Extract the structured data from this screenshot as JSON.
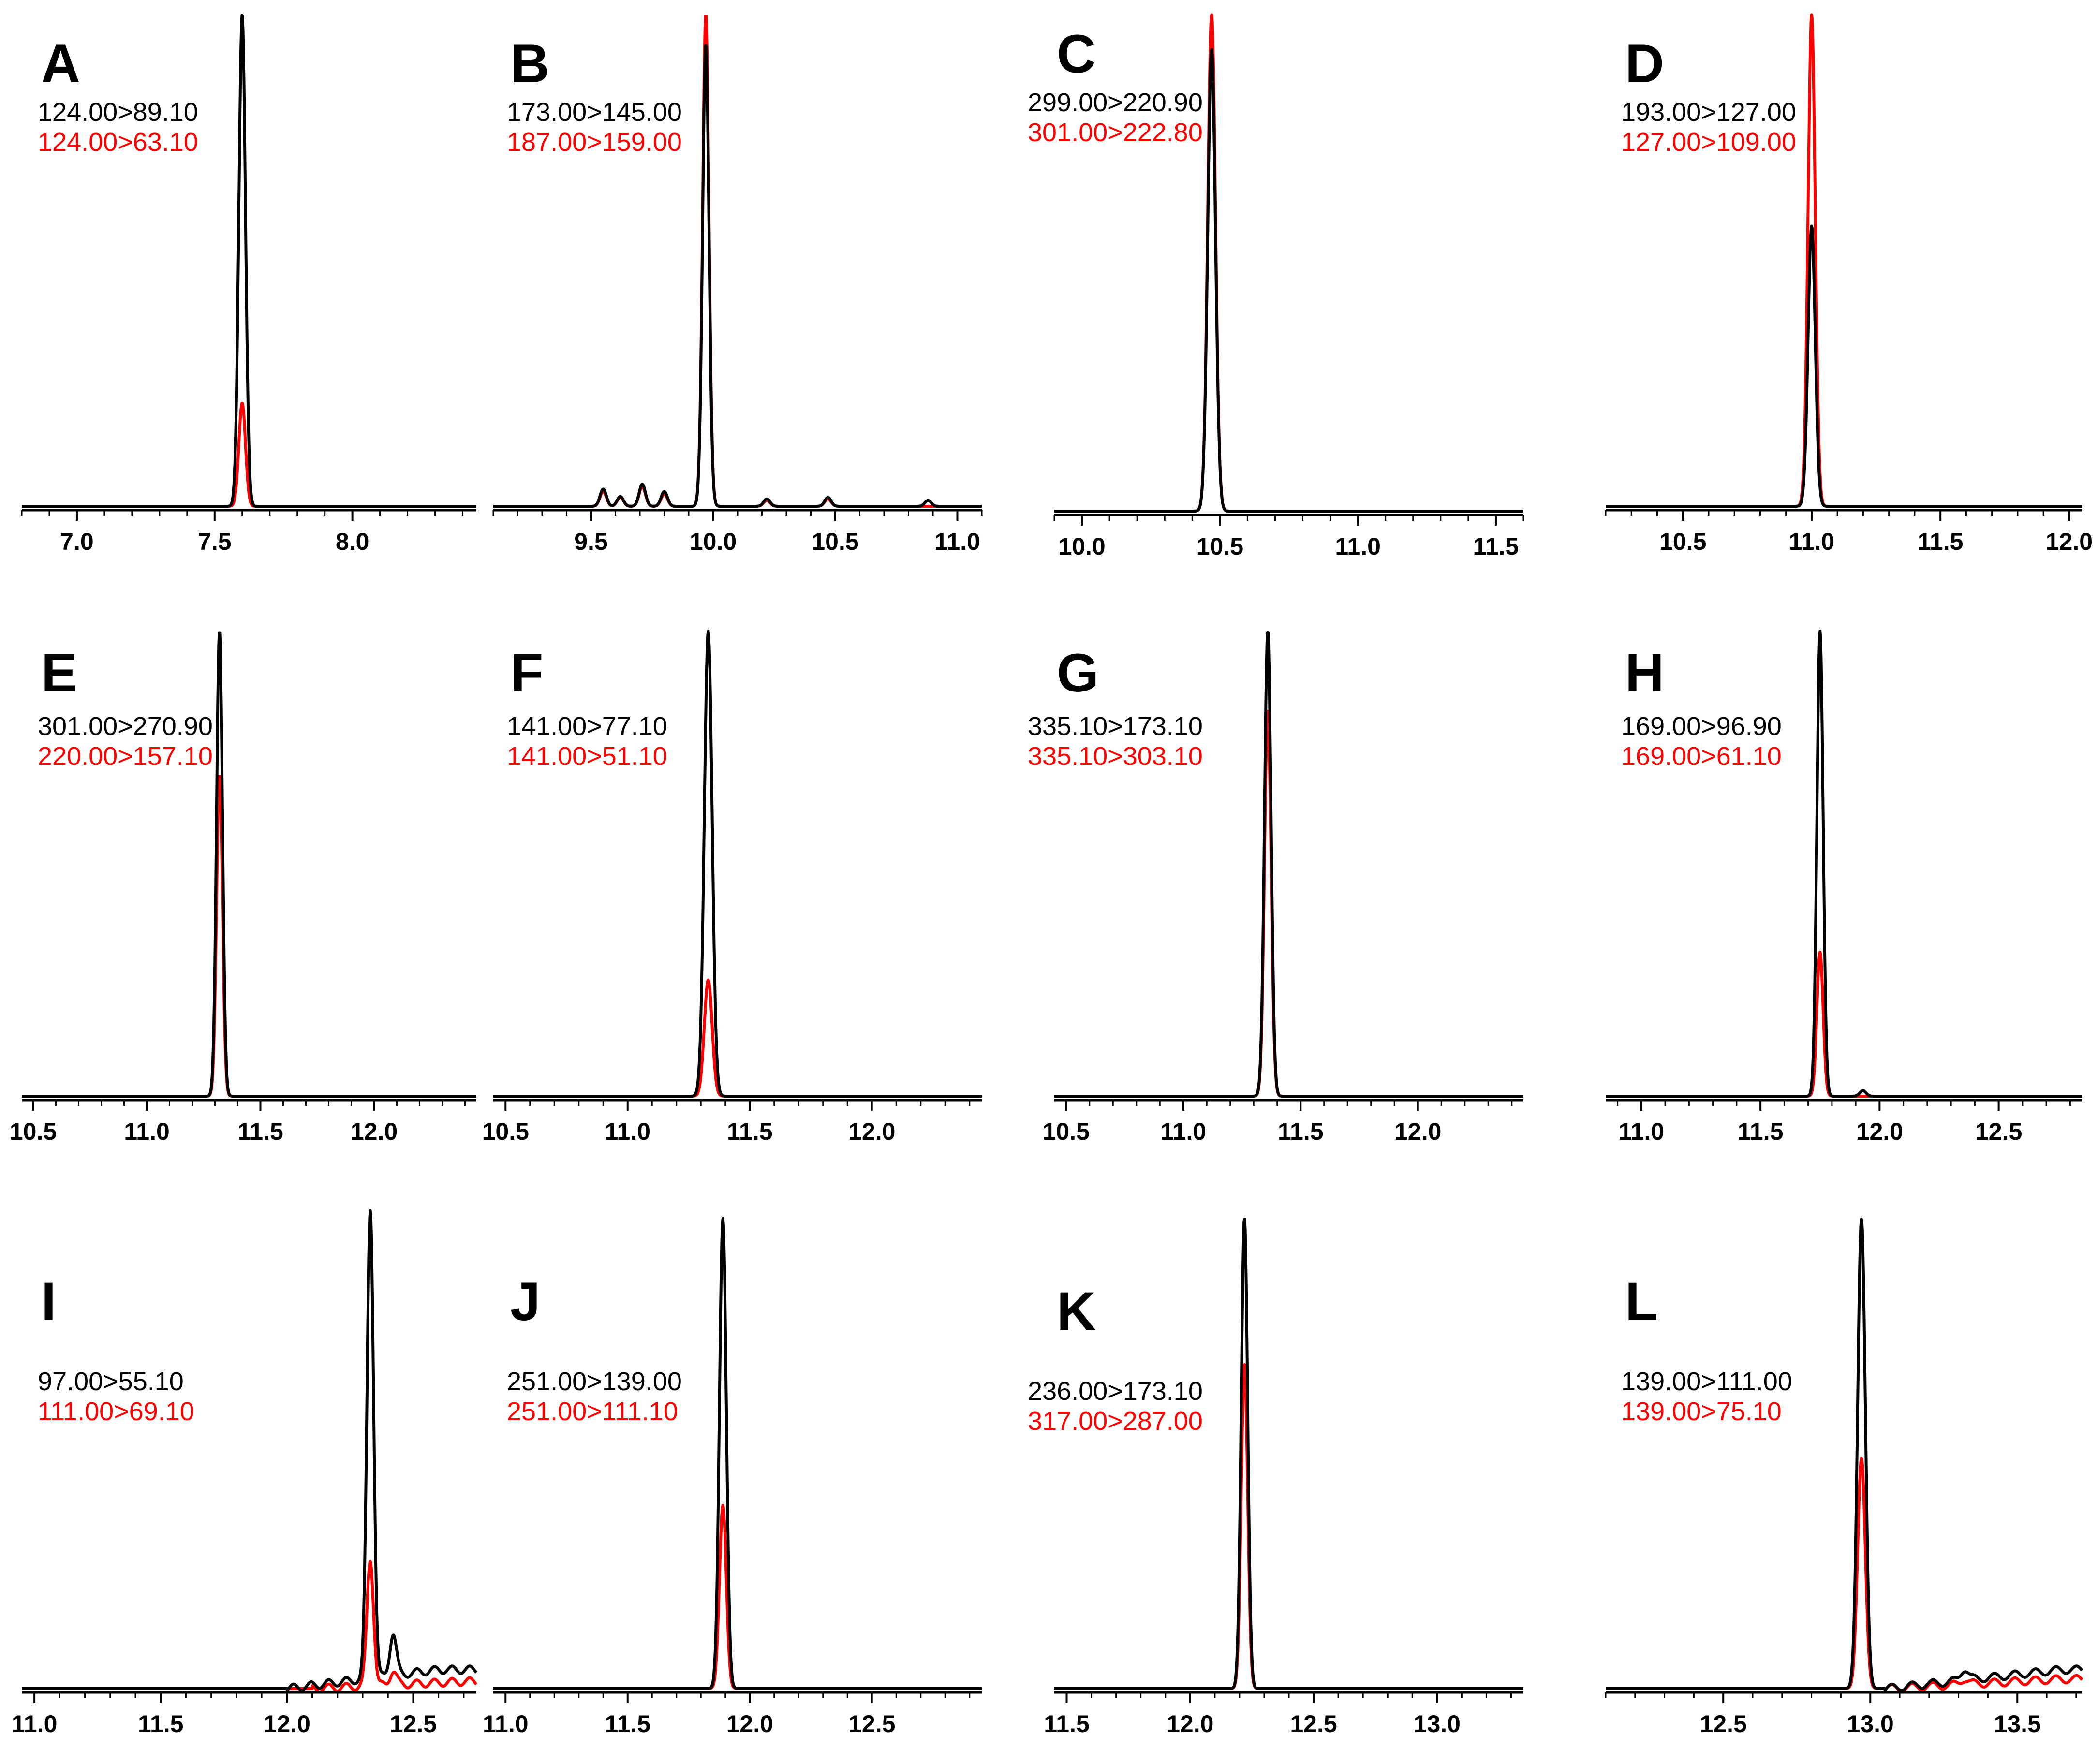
{
  "colors": {
    "trace_1": "#000000",
    "trace_2": "#ff0000"
  },
  "chart_data": [
    {
      "type": "line",
      "panel": "A",
      "transitions": [
        "124.00>89.10",
        "124.00>63.10"
      ],
      "xlim": [
        6.8,
        8.45
      ],
      "xticks": [
        7.0,
        7.5,
        8.0
      ],
      "xtick_labels": [
        "7.0",
        "7.5",
        "8.0"
      ],
      "minor_step": 0.1,
      "series": [
        {
          "name": "124.00>89.10",
          "peaks": [
            {
              "rt": 7.6,
              "height": 1.0
            }
          ],
          "baseline": 0.0,
          "width": 0.012
        },
        {
          "name": "124.00>63.10",
          "peaks": [
            {
              "rt": 7.6,
              "height": 0.21
            }
          ],
          "baseline": 0.0,
          "width": 0.012
        }
      ]
    },
    {
      "type": "line",
      "panel": "B",
      "transitions": [
        "173.00>145.00",
        "187.00>159.00"
      ],
      "xlim": [
        9.1,
        11.1
      ],
      "xticks": [
        9.5,
        10.0,
        10.5,
        11.0
      ],
      "xtick_labels": [
        "9.5",
        "10.0",
        "10.5",
        "11.0"
      ],
      "minor_step": 0.1,
      "series": [
        {
          "name": "173.00>145.00",
          "peaks": [
            {
              "rt": 9.97,
              "height": 0.94
            },
            {
              "rt": 9.55,
              "height": 0.035
            },
            {
              "rt": 9.62,
              "height": 0.02
            },
            {
              "rt": 9.71,
              "height": 0.045
            },
            {
              "rt": 9.8,
              "height": 0.03
            },
            {
              "rt": 10.22,
              "height": 0.015
            },
            {
              "rt": 10.47,
              "height": 0.018
            },
            {
              "rt": 10.88,
              "height": 0.012
            }
          ],
          "baseline": 0.0,
          "width": 0.013
        },
        {
          "name": "187.00>159.00",
          "peaks": [
            {
              "rt": 9.97,
              "height": 1.0
            },
            {
              "rt": 9.55,
              "height": 0.03
            },
            {
              "rt": 9.62,
              "height": 0.018
            },
            {
              "rt": 9.71,
              "height": 0.04
            },
            {
              "rt": 9.8,
              "height": 0.025
            },
            {
              "rt": 10.22,
              "height": 0.012
            },
            {
              "rt": 10.47,
              "height": 0.015
            }
          ],
          "baseline": 0.0,
          "width": 0.013
        }
      ]
    },
    {
      "type": "line",
      "panel": "C",
      "transitions": [
        "299.00>220.90",
        "301.00>222.80"
      ],
      "xlim": [
        9.9,
        11.6
      ],
      "xticks": [
        10.0,
        10.5,
        11.0,
        11.5
      ],
      "xtick_labels": [
        "10.0",
        "10.5",
        "11.0",
        "11.5"
      ],
      "minor_step": 0.1,
      "series": [
        {
          "name": "299.00>220.90",
          "peaks": [
            {
              "rt": 10.47,
              "height": 0.93
            }
          ],
          "baseline": 0.0,
          "width": 0.014
        },
        {
          "name": "301.00>222.80",
          "peaks": [
            {
              "rt": 10.47,
              "height": 1.0
            }
          ],
          "baseline": 0.0,
          "width": 0.014
        }
      ]
    },
    {
      "type": "line",
      "panel": "D",
      "transitions": [
        "193.00>127.00",
        "127.00>109.00"
      ],
      "xlim": [
        10.2,
        12.05
      ],
      "xticks": [
        10.5,
        11.0,
        11.5,
        12.0
      ],
      "xtick_labels": [
        "10.5",
        "11.0",
        "11.5",
        "12.0"
      ],
      "minor_step": 0.1,
      "series": [
        {
          "name": "193.00>127.00",
          "peaks": [
            {
              "rt": 11.0,
              "height": 0.57
            }
          ],
          "baseline": 0.0,
          "width": 0.014
        },
        {
          "name": "127.00>109.00",
          "peaks": [
            {
              "rt": 11.0,
              "height": 1.0
            }
          ],
          "baseline": 0.0,
          "width": 0.014
        }
      ]
    },
    {
      "type": "line",
      "panel": "E",
      "transitions": [
        "301.00>270.90",
        "220.00>157.10"
      ],
      "xlim": [
        10.45,
        12.45
      ],
      "xticks": [
        10.5,
        11.0,
        11.5,
        12.0
      ],
      "xtick_labels": [
        "10.5",
        "11.0",
        "11.5",
        "12.0"
      ],
      "minor_step": 0.1,
      "series": [
        {
          "name": "301.00>270.90",
          "peaks": [
            {
              "rt": 11.32,
              "height": 1.0
            }
          ],
          "baseline": 0.0,
          "width": 0.013
        },
        {
          "name": "220.00>157.10",
          "peaks": [
            {
              "rt": 11.32,
              "height": 0.69
            }
          ],
          "baseline": 0.0,
          "width": 0.013
        }
      ]
    },
    {
      "type": "line",
      "panel": "F",
      "transitions": [
        "141.00>77.10",
        "141.00>51.10"
      ],
      "xlim": [
        10.45,
        12.45
      ],
      "xticks": [
        10.5,
        11.0,
        11.5,
        12.0
      ],
      "xtick_labels": [
        "10.5",
        "11.0",
        "11.5",
        "12.0"
      ],
      "minor_step": 0.1,
      "series": [
        {
          "name": "141.00>77.10",
          "peaks": [
            {
              "rt": 11.33,
              "height": 1.0
            }
          ],
          "baseline": 0.0,
          "width": 0.016
        },
        {
          "name": "141.00>51.10",
          "peaks": [
            {
              "rt": 11.33,
              "height": 0.25
            }
          ],
          "baseline": 0.0,
          "width": 0.016
        }
      ]
    },
    {
      "type": "line",
      "panel": "G",
      "transitions": [
        "335.10>173.10",
        "335.10>303.10"
      ],
      "xlim": [
        10.45,
        12.45
      ],
      "xticks": [
        10.5,
        11.0,
        11.5,
        12.0
      ],
      "xtick_labels": [
        "10.5",
        "11.0",
        "11.5",
        "12.0"
      ],
      "minor_step": 0.1,
      "series": [
        {
          "name": "335.10>173.10",
          "peaks": [
            {
              "rt": 11.36,
              "height": 1.0
            }
          ],
          "baseline": 0.0,
          "width": 0.014
        },
        {
          "name": "335.10>303.10",
          "peaks": [
            {
              "rt": 11.36,
              "height": 0.83
            }
          ],
          "baseline": 0.0,
          "width": 0.014
        }
      ]
    },
    {
      "type": "line",
      "panel": "H",
      "transitions": [
        "169.00>96.90",
        "169.00>61.10"
      ],
      "xlim": [
        10.85,
        12.85
      ],
      "xticks": [
        11.0,
        11.5,
        12.0,
        12.5
      ],
      "xtick_labels": [
        "11.0",
        "11.5",
        "12.0",
        "12.5"
      ],
      "minor_step": 0.1,
      "series": [
        {
          "name": "169.00>96.90",
          "peaks": [
            {
              "rt": 11.75,
              "height": 1.0
            },
            {
              "rt": 11.93,
              "height": 0.012
            }
          ],
          "baseline": 0.0,
          "width": 0.013
        },
        {
          "name": "169.00>61.10",
          "peaks": [
            {
              "rt": 11.75,
              "height": 0.31
            }
          ],
          "baseline": 0.0,
          "width": 0.013
        }
      ]
    },
    {
      "type": "line",
      "panel": "I",
      "transitions": [
        "97.00>55.10",
        "111.00>69.10"
      ],
      "xlim": [
        10.95,
        12.75
      ],
      "xticks": [
        11.0,
        11.5,
        12.0,
        12.5
      ],
      "xtick_labels": [
        "11.0",
        "11.5",
        "12.0",
        "12.5"
      ],
      "minor_step": 0.1,
      "series": [
        {
          "name": "97.00>55.10",
          "peaks": [
            {
              "rt": 12.33,
              "height": 1.0
            },
            {
              "rt": 12.42,
              "height": 0.09
            }
          ],
          "baseline": 0.0,
          "width": 0.013,
          "ramp": [
            12.0,
            0.04
          ]
        },
        {
          "name": "111.00>69.10",
          "peaks": [
            {
              "rt": 12.33,
              "height": 0.27
            },
            {
              "rt": 12.42,
              "height": 0.03
            }
          ],
          "baseline": 0.0,
          "width": 0.013,
          "ramp": [
            12.1,
            0.015
          ]
        }
      ]
    },
    {
      "type": "line",
      "panel": "J",
      "transitions": [
        "251.00>139.00",
        "251.00>111.10"
      ],
      "xlim": [
        10.95,
        12.95
      ],
      "xticks": [
        11.0,
        11.5,
        12.0,
        12.5
      ],
      "xtick_labels": [
        "11.0",
        "11.5",
        "12.0",
        "12.5"
      ],
      "minor_step": 0.1,
      "series": [
        {
          "name": "251.00>139.00",
          "peaks": [
            {
              "rt": 11.89,
              "height": 1.0
            }
          ],
          "baseline": 0.0,
          "width": 0.014
        },
        {
          "name": "251.00>111.10",
          "peaks": [
            {
              "rt": 11.89,
              "height": 0.39
            }
          ],
          "baseline": 0.0,
          "width": 0.014
        }
      ]
    },
    {
      "type": "line",
      "panel": "K",
      "transitions": [
        "236.00>173.10",
        "317.00>287.00"
      ],
      "xlim": [
        11.45,
        13.35
      ],
      "xticks": [
        11.5,
        12.0,
        12.5,
        13.0
      ],
      "xtick_labels": [
        "11.5",
        "12.0",
        "12.5",
        "13.0"
      ],
      "minor_step": 0.1,
      "series": [
        {
          "name": "236.00>173.10",
          "peaks": [
            {
              "rt": 12.22,
              "height": 1.0
            }
          ],
          "baseline": 0.0,
          "width": 0.013
        },
        {
          "name": "317.00>287.00",
          "peaks": [
            {
              "rt": 12.22,
              "height": 0.69
            }
          ],
          "baseline": 0.0,
          "width": 0.013
        }
      ]
    },
    {
      "type": "line",
      "panel": "L",
      "transitions": [
        "139.00>111.00",
        "139.00>75.10"
      ],
      "xlim": [
        12.1,
        13.72
      ],
      "xticks": [
        12.5,
        13.0,
        13.5
      ],
      "xtick_labels": [
        "12.5",
        "13.0",
        "13.5"
      ],
      "minor_step": 0.1,
      "series": [
        {
          "name": "139.00>111.00",
          "peaks": [
            {
              "rt": 12.97,
              "height": 1.0
            },
            {
              "rt": 13.32,
              "height": 0.025
            }
          ],
          "baseline": 0.0,
          "width": 0.013,
          "ramp": [
            13.05,
            0.04
          ]
        },
        {
          "name": "139.00>75.10",
          "peaks": [
            {
              "rt": 12.97,
              "height": 0.49
            },
            {
              "rt": 13.32,
              "height": 0.012
            }
          ],
          "baseline": 0.0,
          "width": 0.013,
          "ramp": [
            13.05,
            0.02
          ]
        }
      ]
    }
  ]
}
